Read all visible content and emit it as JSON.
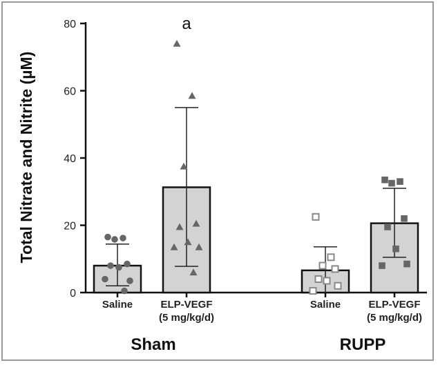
{
  "chart_data": {
    "type": "bar",
    "ylabel": "Total Nitrate and Nitrite (µM)",
    "ylim": [
      0,
      80
    ],
    "yticks": [
      0,
      20,
      40,
      60,
      80
    ],
    "grid": false,
    "categories": [
      {
        "label": "Saline",
        "sublabel": "",
        "group": "Sham",
        "mean": 8,
        "error_upper": 14.4,
        "error_lower": 2,
        "marker": "circle",
        "annotation": "",
        "points": [
          16.5,
          16.2,
          15.8,
          8.5,
          8,
          7.5,
          3.5,
          4,
          0.5
        ]
      },
      {
        "label": "ELP-VEGF",
        "sublabel": "(5 mg/kg/d)",
        "group": "Sham",
        "mean": 31.3,
        "error_upper": 55,
        "error_lower": 7.8,
        "marker": "triangle",
        "annotation": "a",
        "points": [
          74,
          58.5,
          37.5,
          20.5,
          19.5,
          15,
          13.5,
          13.5,
          6
        ]
      },
      {
        "label": "Saline",
        "sublabel": "",
        "group": "RUPP",
        "mean": 6.6,
        "error_upper": 13.6,
        "error_lower": 0,
        "marker": "square-open",
        "annotation": "",
        "points": [
          22.5,
          10.5,
          8,
          7,
          4,
          3.5,
          2,
          0.5
        ]
      },
      {
        "label": "ELP-VEGF",
        "sublabel": "(5 mg/kg/d)",
        "group": "RUPP",
        "mean": 20.6,
        "error_upper": 31,
        "error_lower": 10.5,
        "marker": "square",
        "annotation": "",
        "points": [
          33.5,
          33,
          32.5,
          22,
          19.5,
          13,
          8.5,
          8
        ]
      }
    ],
    "groups": [
      "Sham",
      "RUPP"
    ],
    "colors": {
      "bar": "#d3d3d3",
      "point": "#666666",
      "axis": "#111111"
    }
  }
}
